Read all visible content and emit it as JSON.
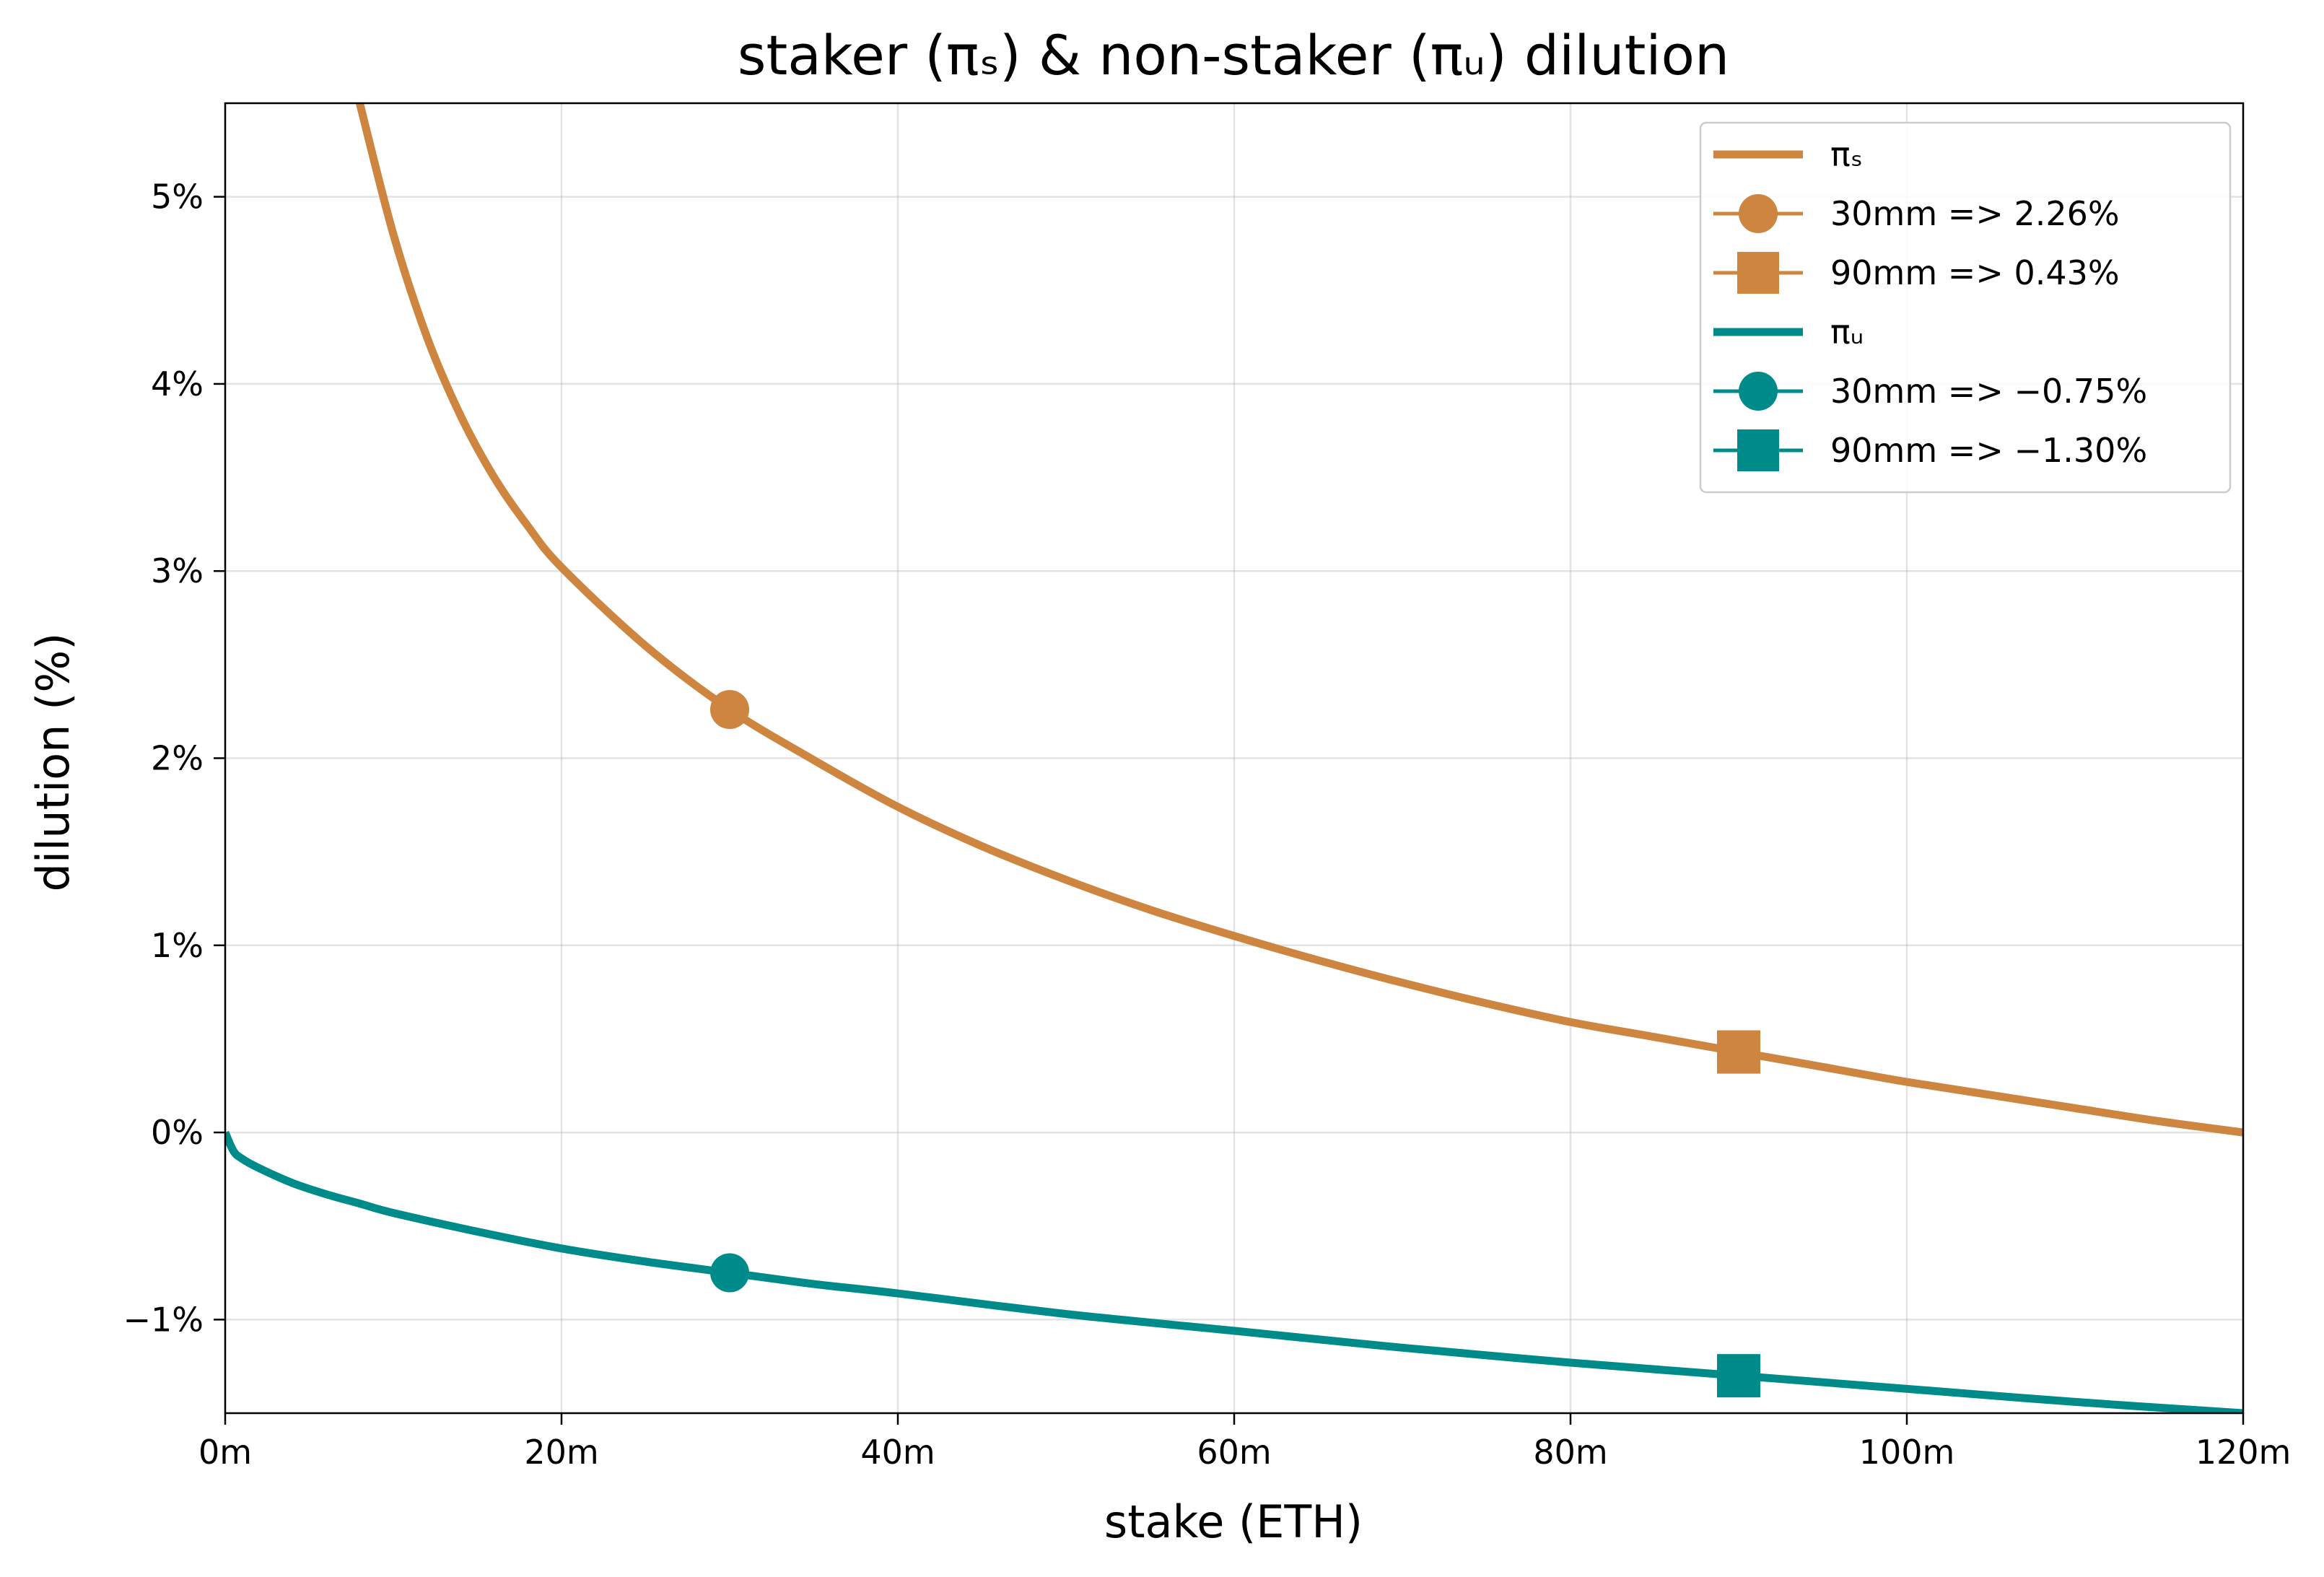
{
  "chart_data": {
    "type": "line",
    "title": "staker (πₛ) & non-staker (πᵤ) dilution",
    "xlabel": "stake (ETH)",
    "ylabel": "dilution (%)",
    "xlim": [
      0,
      120
    ],
    "ylim": [
      -1.5,
      5.5
    ],
    "grid": true,
    "legend_position": "top-right",
    "x_ticks": [
      {
        "value": 0,
        "label": "0m"
      },
      {
        "value": 20,
        "label": "20m"
      },
      {
        "value": 40,
        "label": "40m"
      },
      {
        "value": 60,
        "label": "60m"
      },
      {
        "value": 80,
        "label": "80m"
      },
      {
        "value": 100,
        "label": "100m"
      },
      {
        "value": 120,
        "label": "120m"
      }
    ],
    "y_ticks": [
      {
        "value": -1,
        "label": "−1%"
      },
      {
        "value": 0,
        "label": "0%"
      },
      {
        "value": 1,
        "label": "1%"
      },
      {
        "value": 2,
        "label": "2%"
      },
      {
        "value": 3,
        "label": "3%"
      },
      {
        "value": 4,
        "label": "4%"
      },
      {
        "value": 5,
        "label": "5%"
      }
    ],
    "series": [
      {
        "name": "πₛ",
        "color": "#cd853f",
        "x": [
          8,
          10,
          12,
          14,
          16,
          18,
          20,
          25,
          30,
          35,
          40,
          45,
          50,
          55,
          60,
          65,
          70,
          75,
          80,
          85,
          90,
          95,
          100,
          105,
          110,
          115,
          120
        ],
        "y": [
          5.5,
          4.8,
          4.25,
          3.83,
          3.5,
          3.24,
          3.02,
          2.6,
          2.26,
          1.99,
          1.74,
          1.53,
          1.35,
          1.19,
          1.05,
          0.92,
          0.8,
          0.69,
          0.59,
          0.51,
          0.43,
          0.35,
          0.27,
          0.2,
          0.13,
          0.06,
          0.0
        ]
      },
      {
        "name": "πᵤ",
        "color": "#008b8b",
        "x": [
          0,
          0.5,
          1,
          2,
          4,
          6,
          8,
          10,
          15,
          20,
          25,
          30,
          35,
          40,
          50,
          60,
          70,
          80,
          90,
          100,
          110,
          120
        ],
        "y": [
          0.0,
          -0.1,
          -0.14,
          -0.19,
          -0.27,
          -0.33,
          -0.38,
          -0.43,
          -0.53,
          -0.62,
          -0.69,
          -0.75,
          -0.81,
          -0.86,
          -0.97,
          -1.06,
          -1.15,
          -1.23,
          -1.3,
          -1.37,
          -1.44,
          -1.5
        ]
      }
    ],
    "markers": [
      {
        "name": "30mm => 2.26%",
        "x": 30,
        "y": 2.26,
        "shape": "circle",
        "color": "#cd853f"
      },
      {
        "name": "90mm => 0.43%",
        "x": 90,
        "y": 0.43,
        "shape": "square",
        "color": "#cd853f"
      },
      {
        "name": "30mm => −0.75%",
        "x": 30,
        "y": -0.75,
        "shape": "circle",
        "color": "#008b8b"
      },
      {
        "name": "90mm => −1.30%",
        "x": 90,
        "y": -1.3,
        "shape": "square",
        "color": "#008b8b"
      }
    ],
    "legend": [
      {
        "label": "πₛ",
        "kind": "line",
        "color": "#cd853f"
      },
      {
        "label": "30mm => 2.26%",
        "kind": "circle",
        "color": "#cd853f"
      },
      {
        "label": "90mm => 0.43%",
        "kind": "square",
        "color": "#cd853f"
      },
      {
        "label": "πᵤ",
        "kind": "line",
        "color": "#008b8b"
      },
      {
        "label": "30mm => −0.75%",
        "kind": "circle",
        "color": "#008b8b"
      },
      {
        "label": "90mm => −1.30%",
        "kind": "square",
        "color": "#008b8b"
      }
    ]
  }
}
